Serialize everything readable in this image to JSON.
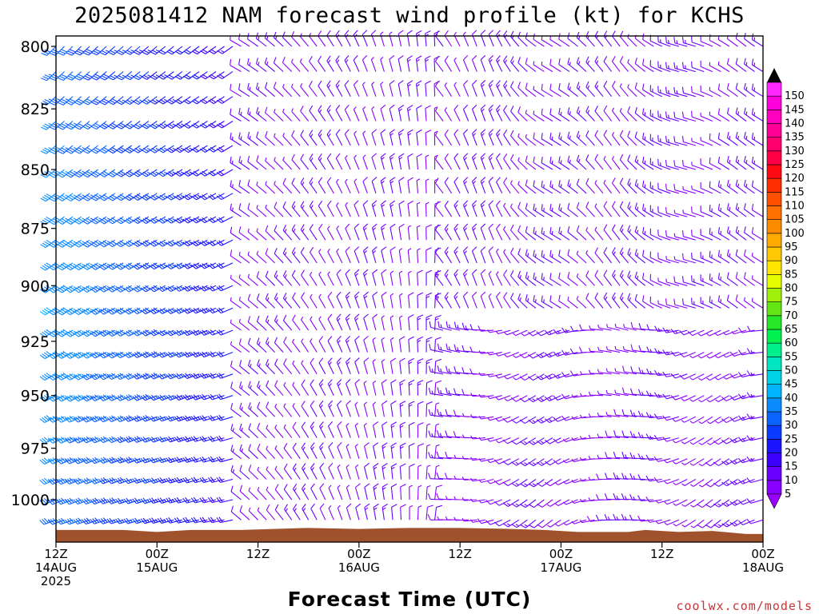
{
  "chart_data": {
    "type": "wind-barb-profile",
    "title": "2025081412 NAM forecast wind profile (kt) for KCHS",
    "xlabel": "Forecast Time (UTC)",
    "ylabel": "",
    "credit": "coolwx.com/models",
    "yticks": [
      "800",
      "825",
      "850",
      "875",
      "900",
      "925",
      "950",
      "975",
      "1000"
    ],
    "ylim": [
      1020,
      795
    ],
    "y_scale": "log",
    "xticks": [
      {
        "h": 0,
        "line1": "12Z",
        "line2": "14AUG",
        "line3": "2025"
      },
      {
        "h": 12,
        "line1": "00Z",
        "line2": "15AUG",
        "line3": ""
      },
      {
        "h": 24,
        "line1": "12Z",
        "line2": "",
        "line3": ""
      },
      {
        "h": 36,
        "line1": "00Z",
        "line2": "16AUG",
        "line3": ""
      },
      {
        "h": 48,
        "line1": "12Z",
        "line2": "",
        "line3": ""
      },
      {
        "h": 60,
        "line1": "00Z",
        "line2": "17AUG",
        "line3": ""
      },
      {
        "h": 72,
        "line1": "12Z",
        "line2": "",
        "line3": ""
      },
      {
        "h": 84,
        "line1": "00Z",
        "line2": "18AUG",
        "line3": ""
      }
    ],
    "xlim": [
      0,
      84
    ],
    "colorbar": {
      "labels": [
        "5",
        "10",
        "15",
        "20",
        "25",
        "30",
        "35",
        "40",
        "45",
        "50",
        "55",
        "60",
        "65",
        "70",
        "75",
        "80",
        "85",
        "90",
        "95",
        "100",
        "105",
        "110",
        "115",
        "120",
        "125",
        "130",
        "135",
        "140",
        "145",
        "150"
      ],
      "colors": [
        "#8a00ff",
        "#6a00ff",
        "#3c00ff",
        "#1a14ff",
        "#0a3cff",
        "#0a64ff",
        "#0a8cff",
        "#00b4ff",
        "#00d2e6",
        "#00e6c3",
        "#00f08c",
        "#00f050",
        "#28e628",
        "#64e614",
        "#a0f00a",
        "#e6ff00",
        "#ffe600",
        "#ffc800",
        "#ffaa00",
        "#ff8c00",
        "#ff7000",
        "#ff5000",
        "#ff2d00",
        "#ff0a14",
        "#ff0046",
        "#ff006e",
        "#ff0096",
        "#ff00be",
        "#ff00dc",
        "#ff28ff"
      ]
    },
    "barb_levels_hpa": [
      800,
      810,
      820,
      830,
      840,
      850,
      860,
      870,
      880,
      890,
      900,
      910,
      920,
      930,
      940,
      950,
      960,
      970,
      980,
      990,
      1000,
      1010
    ],
    "barb_times_h": "every 1 h from 0 to 84",
    "wind_description": "Southwest 20-35 kt early (strongest 850-925 hPa) weakening to light northerly 5-15 kt by 16AUG, backing to light southwesterly/westerly in lower levels late on 17AUG.",
    "terrain_fill": "#a0522d"
  }
}
